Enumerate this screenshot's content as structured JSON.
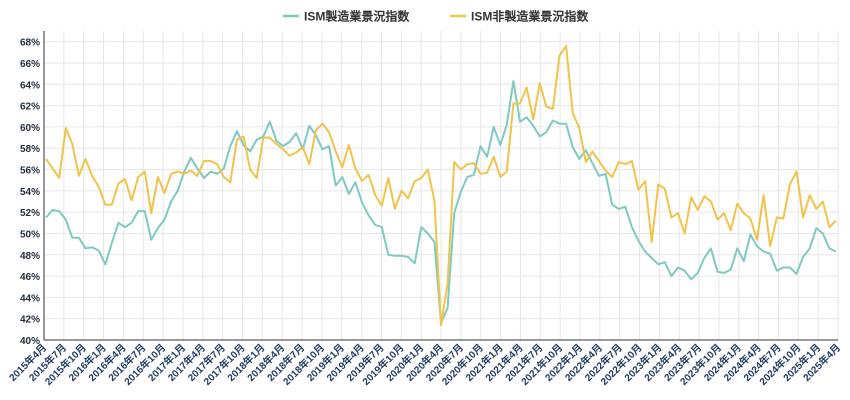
{
  "chart_data": {
    "type": "line",
    "title": "",
    "xlabel": "",
    "ylabel": "",
    "ylim": [
      40,
      69
    ],
    "yticks": [
      40,
      42,
      44,
      46,
      48,
      50,
      52,
      54,
      56,
      58,
      60,
      62,
      64,
      66,
      68
    ],
    "ytick_suffix": "%",
    "grid": true,
    "legend_position": "top-center",
    "x_tick_labels": [
      "2015年4月",
      "2015年7月",
      "2015年10月",
      "2016年1月",
      "2016年4月",
      "2016年7月",
      "2016年10月",
      "2017年1月",
      "2017年4月",
      "2017年7月",
      "2017年10月",
      "2018年1月",
      "2018年4月",
      "2018年7月",
      "2018年10月",
      "2019年1月",
      "2019年4月",
      "2019年7月",
      "2019年10月",
      "2020年1月",
      "2020年4月",
      "2020年7月",
      "2020年10月",
      "2021年1月",
      "2021年4月",
      "2021年7月",
      "2021年10月",
      "2022年1月",
      "2022年4月",
      "2022年7月",
      "2022年10月",
      "2023年1月",
      "2023年4月",
      "2023年7月",
      "2023年10月",
      "2024年1月",
      "2024年4月",
      "2024年7月",
      "2024年10月",
      "2025年1月",
      "2025年4月"
    ],
    "series": [
      {
        "name": "ISM製造業景況指数",
        "color": "#7ecac2",
        "values": [
          51.5,
          52.2,
          52.1,
          51.3,
          49.6,
          49.6,
          48.6,
          48.7,
          48.4,
          47.1,
          49.1,
          51.0,
          50.6,
          51.0,
          52.1,
          52.1,
          49.4,
          50.5,
          51.3,
          53.0,
          54.0,
          55.8,
          57.1,
          56.1,
          55.2,
          55.8,
          55.6,
          56.1,
          58.2,
          59.6,
          58.3,
          57.7,
          58.8,
          59.1,
          60.5,
          58.7,
          58.2,
          58.6,
          59.4,
          57.9,
          60.1,
          59.2,
          57.9,
          58.2,
          54.5,
          55.3,
          53.7,
          54.8,
          52.9,
          51.7,
          50.8,
          50.6,
          48.0,
          47.9,
          47.9,
          47.8,
          47.2,
          50.6,
          50.0,
          49.2,
          41.6,
          43.0,
          51.9,
          53.9,
          55.3,
          55.5,
          58.2,
          57.2,
          60.0,
          58.3,
          60.2,
          64.3,
          60.5,
          60.9,
          60.1,
          59.1,
          59.5,
          60.6,
          60.3,
          60.3,
          58.1,
          57.0,
          57.8,
          56.6,
          55.4,
          55.6,
          52.7,
          52.3,
          52.5,
          50.6,
          49.3,
          48.3,
          47.7,
          47.1,
          47.3,
          46.0,
          46.8,
          46.5,
          45.7,
          46.3,
          47.7,
          48.6,
          46.4,
          46.3,
          46.6,
          48.6,
          47.4,
          49.9,
          48.8,
          48.3,
          48.1,
          46.5,
          46.8,
          46.8,
          46.2,
          47.8,
          48.6,
          50.5,
          50.0,
          48.6,
          48.3
        ]
      },
      {
        "name": "ISM非製造業景況指数",
        "color": "#f0c44b",
        "values": [
          57.0,
          56.1,
          55.2,
          59.9,
          58.4,
          55.4,
          57.0,
          55.4,
          54.4,
          52.7,
          52.7,
          54.7,
          55.1,
          53.1,
          55.3,
          55.8,
          51.9,
          55.3,
          53.8,
          55.6,
          55.8,
          55.6,
          55.9,
          55.4,
          56.8,
          56.8,
          56.5,
          55.3,
          54.8,
          58.8,
          59.1,
          56.0,
          55.2,
          59.0,
          59.0,
          58.4,
          57.9,
          57.3,
          57.6,
          58.1,
          56.5,
          59.7,
          60.3,
          59.5,
          57.7,
          56.2,
          58.3,
          56.1,
          54.9,
          55.5,
          53.6,
          52.6,
          55.2,
          52.3,
          54.0,
          53.3,
          54.9,
          55.2,
          56.0,
          53.1,
          41.4,
          45.3,
          56.7,
          56.0,
          56.5,
          56.6,
          55.6,
          55.7,
          57.2,
          55.3,
          55.8,
          62.2,
          62.2,
          63.7,
          60.7,
          64.1,
          61.9,
          61.7,
          66.7,
          67.6,
          61.3,
          59.9,
          56.7,
          57.7,
          56.8,
          55.9,
          55.3,
          56.7,
          56.5,
          56.8,
          54.1,
          54.9,
          49.2,
          54.6,
          54.2,
          51.5,
          51.9,
          50.0,
          53.4,
          52.2,
          53.5,
          53.0,
          51.3,
          51.9,
          50.3,
          52.8,
          51.9,
          51.4,
          49.4,
          53.6,
          48.8,
          51.5,
          51.4,
          54.6,
          55.8,
          51.5,
          53.6,
          52.3,
          53.0,
          50.6,
          51.2
        ]
      }
    ]
  }
}
